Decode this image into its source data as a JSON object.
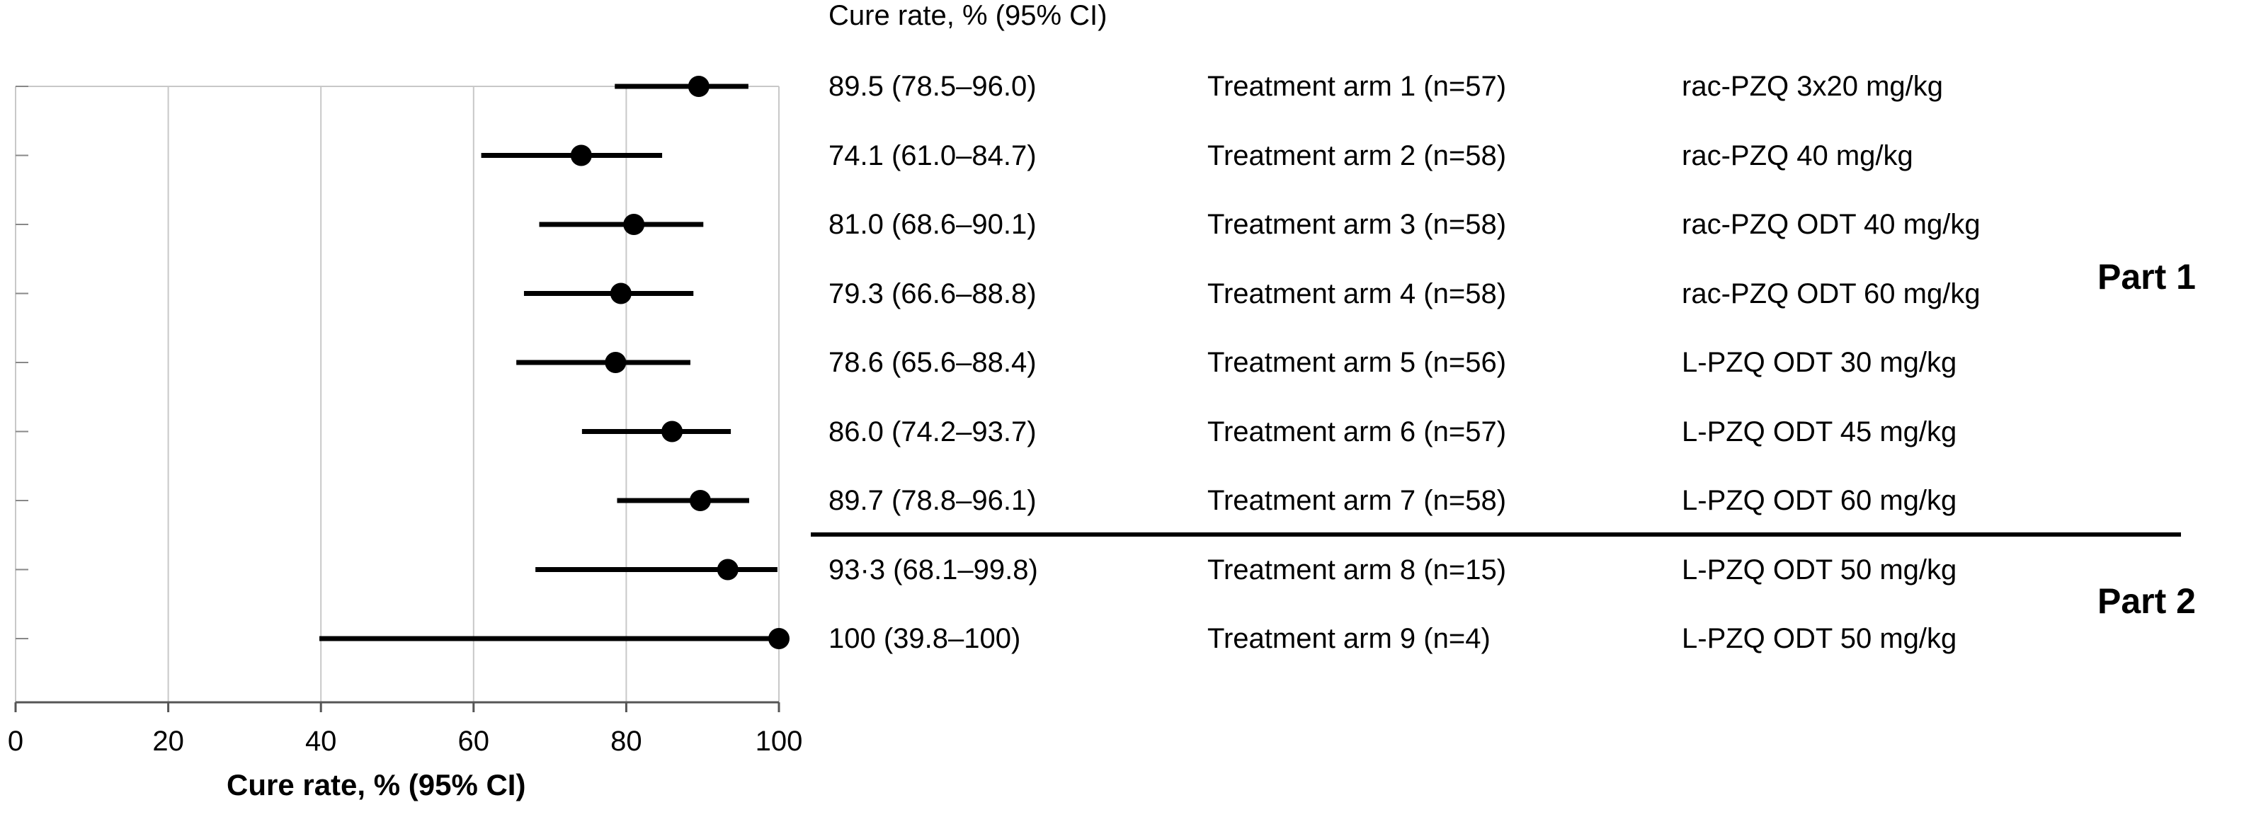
{
  "chart_data": {
    "type": "forest",
    "title": "",
    "xlabel": "Cure rate, % (95% CI)",
    "xlim": [
      0,
      100
    ],
    "xticks": [
      0,
      20,
      40,
      60,
      80,
      100
    ],
    "grid": true,
    "column_header": "Cure rate, % (95% CI)",
    "rows": [
      {
        "label": "89.5 (78.5–96.0)",
        "arm": "Treatment arm 1 (n=57)",
        "regimen": "rac-PZQ 3x20 mg/kg",
        "estimate": 89.5,
        "lower": 78.5,
        "upper": 96.0
      },
      {
        "label": "74.1 (61.0–84.7)",
        "arm": "Treatment arm 2 (n=58)",
        "regimen": "rac-PZQ 40 mg/kg",
        "estimate": 74.1,
        "lower": 61.0,
        "upper": 84.7
      },
      {
        "label": "81.0 (68.6–90.1)",
        "arm": "Treatment arm 3 (n=58)",
        "regimen": "rac-PZQ ODT 40 mg/kg",
        "estimate": 81.0,
        "lower": 68.6,
        "upper": 90.1
      },
      {
        "label": "79.3 (66.6–88.8)",
        "arm": "Treatment arm 4 (n=58)",
        "regimen": "rac-PZQ ODT 60 mg/kg",
        "estimate": 79.3,
        "lower": 66.6,
        "upper": 88.8
      },
      {
        "label": "78.6 (65.6–88.4)",
        "arm": "Treatment arm 5 (n=56)",
        "regimen": "L-PZQ ODT 30 mg/kg",
        "estimate": 78.6,
        "lower": 65.6,
        "upper": 88.4
      },
      {
        "label": "86.0 (74.2–93.7)",
        "arm": "Treatment arm 6 (n=57)",
        "regimen": "L-PZQ ODT 45 mg/kg",
        "estimate": 86.0,
        "lower": 74.2,
        "upper": 93.7
      },
      {
        "label": "89.7 (78.8–96.1)",
        "arm": "Treatment arm 7 (n=58)",
        "regimen": "L-PZQ ODT 60 mg/kg",
        "estimate": 89.7,
        "lower": 78.8,
        "upper": 96.1
      },
      {
        "label": "93·3 (68.1–99.8)",
        "arm": "Treatment arm 8 (n=15)",
        "regimen": "L-PZQ ODT 50 mg/kg",
        "estimate": 93.3,
        "lower": 68.1,
        "upper": 99.8
      },
      {
        "label": "100 (39.8–100)",
        "arm": "Treatment arm 9 (n=4)",
        "regimen": "L-PZQ ODT 50 mg/kg",
        "estimate": 100,
        "lower": 39.8,
        "upper": 100
      }
    ],
    "groups": [
      {
        "name": "Part 1",
        "rows": [
          1,
          2,
          3,
          4,
          5,
          6,
          7
        ]
      },
      {
        "name": "Part 2",
        "rows": [
          8,
          9
        ]
      }
    ]
  }
}
